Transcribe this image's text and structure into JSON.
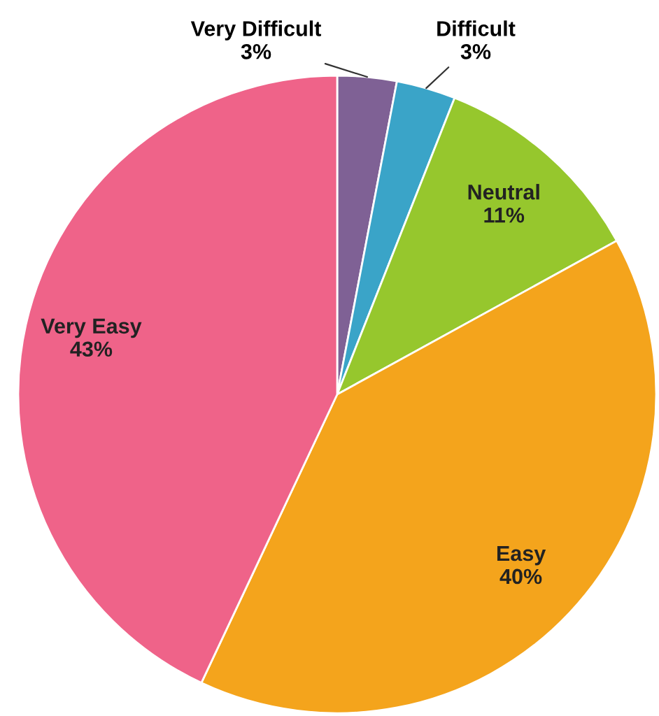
{
  "chart_data": {
    "type": "pie",
    "categories": [
      "Very Difficult",
      "Difficult",
      "Neutral",
      "Easy",
      "Very Easy"
    ],
    "values": [
      3,
      3,
      11,
      40,
      43
    ],
    "value_labels": [
      "3%",
      "3%",
      "11%",
      "40%",
      "43%"
    ],
    "colors": [
      "#7f6195",
      "#3aa4c8",
      "#96c72d",
      "#f4a41c",
      "#ef6389"
    ],
    "legend": false
  }
}
